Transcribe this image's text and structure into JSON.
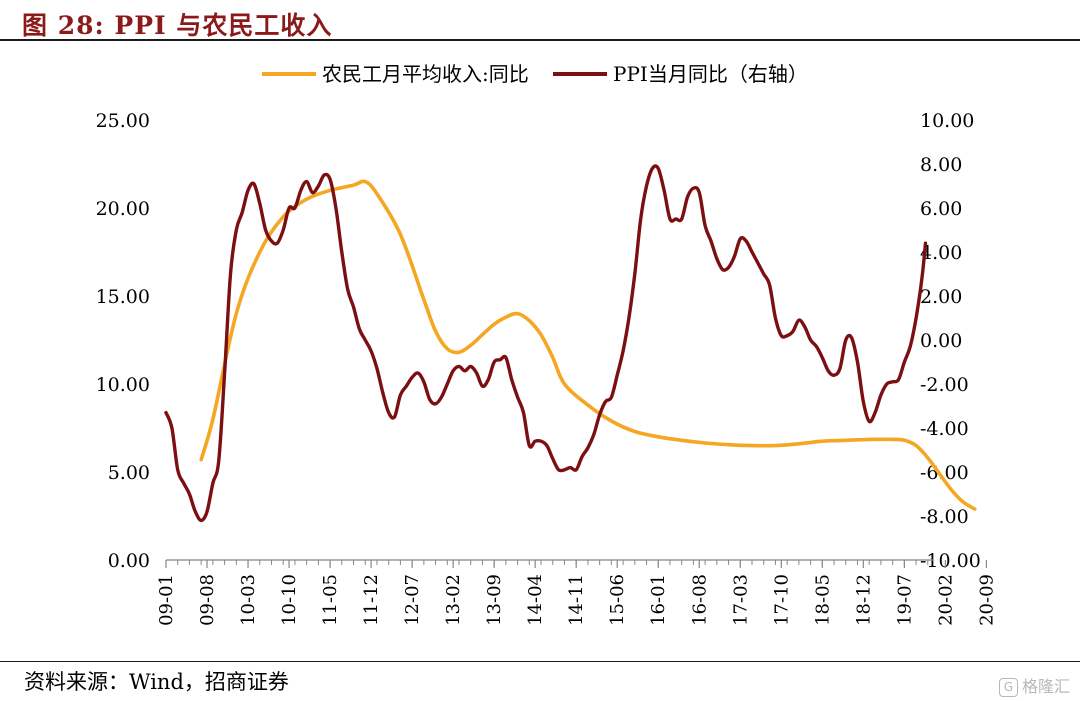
{
  "header": {
    "title": "图 28:  PPI 与农民工收入"
  },
  "footer": {
    "source": "资料来源：Wind，招商证券",
    "watermark": "格隆汇"
  },
  "colors": {
    "income": "#f5a623",
    "ppi": "#7b0f12",
    "title": "#8b1a1a",
    "axis": "#888888"
  },
  "chart_data": {
    "type": "line",
    "title": "",
    "legend_position": "top",
    "x_ticks": [
      "09-01",
      "09-08",
      "10-03",
      "10-10",
      "11-05",
      "11-12",
      "12-07",
      "13-02",
      "13-09",
      "14-04",
      "14-11",
      "15-06",
      "16-01",
      "16-08",
      "17-03",
      "17-10",
      "18-05",
      "18-12",
      "19-07",
      "20-02",
      "20-09"
    ],
    "left_axis": {
      "ylim": [
        0,
        25
      ],
      "ticks": [
        "0.00",
        "5.00",
        "10.00",
        "15.00",
        "20.00",
        "25.00"
      ]
    },
    "right_axis": {
      "ylim": [
        -10,
        10
      ],
      "ticks": [
        "-10.00",
        "-8.00",
        "-6.00",
        "-4.00",
        "-2.00",
        "0.00",
        "2.00",
        "4.00",
        "6.00",
        "8.00",
        "10.00"
      ]
    },
    "series": [
      {
        "name": "农民工月平均收入:同比",
        "axis": "left",
        "points": [
          [
            3,
            5.7
          ],
          [
            4,
            8
          ],
          [
            6,
            14
          ],
          [
            8,
            17.5
          ],
          [
            10,
            19.5
          ],
          [
            12,
            20.5
          ],
          [
            14,
            21
          ],
          [
            16,
            21.3
          ],
          [
            17,
            21.5
          ],
          [
            18,
            20.8
          ],
          [
            20,
            18.5
          ],
          [
            22,
            14.8
          ],
          [
            23,
            13
          ],
          [
            24,
            12
          ],
          [
            25,
            11.8
          ],
          [
            26,
            12.2
          ],
          [
            27,
            12.8
          ],
          [
            28,
            13.4
          ],
          [
            29,
            13.8
          ],
          [
            30,
            14
          ],
          [
            31,
            13.6
          ],
          [
            32,
            12.8
          ],
          [
            33,
            11.5
          ],
          [
            34,
            10
          ],
          [
            36,
            8.8
          ],
          [
            38,
            7.9
          ],
          [
            40,
            7.3
          ],
          [
            42,
            7
          ],
          [
            44,
            6.8
          ],
          [
            46,
            6.65
          ],
          [
            48,
            6.55
          ],
          [
            50,
            6.5
          ],
          [
            52,
            6.5
          ],
          [
            54,
            6.6
          ],
          [
            56,
            6.75
          ],
          [
            58,
            6.8
          ],
          [
            60,
            6.85
          ],
          [
            62,
            6.85
          ],
          [
            63,
            6.8
          ],
          [
            64,
            6.5
          ],
          [
            65,
            5.8
          ],
          [
            66,
            4.9
          ],
          [
            67,
            4
          ],
          [
            68,
            3.3
          ],
          [
            69,
            2.9
          ]
        ]
      },
      {
        "name": "PPI当月同比（右轴）",
        "axis": "right",
        "points": [
          [
            0,
            -3.3
          ],
          [
            0.5,
            -4
          ],
          [
            1,
            -5.9
          ],
          [
            1.5,
            -6.5
          ],
          [
            2,
            -7
          ],
          [
            2.5,
            -7.8
          ],
          [
            3,
            -8.2
          ],
          [
            3.5,
            -7.8
          ],
          [
            4,
            -6.5
          ],
          [
            4.5,
            -5.5
          ],
          [
            5,
            -1.5
          ],
          [
            5.5,
            3
          ],
          [
            6,
            5
          ],
          [
            6.5,
            5.8
          ],
          [
            7,
            6.8
          ],
          [
            7.5,
            7.1
          ],
          [
            8,
            6.2
          ],
          [
            8.5,
            5
          ],
          [
            9,
            4.5
          ],
          [
            9.5,
            4.4
          ],
          [
            10,
            5
          ],
          [
            10.5,
            6
          ],
          [
            11,
            6
          ],
          [
            11.5,
            6.8
          ],
          [
            12,
            7.2
          ],
          [
            12.5,
            6.7
          ],
          [
            13,
            7
          ],
          [
            13.5,
            7.5
          ],
          [
            14,
            7.3
          ],
          [
            14.5,
            6
          ],
          [
            15,
            4
          ],
          [
            15.5,
            2.3
          ],
          [
            16,
            1.5
          ],
          [
            16.5,
            0.5
          ],
          [
            17,
            0
          ],
          [
            17.5,
            -0.5
          ],
          [
            18,
            -1.3
          ],
          [
            18.5,
            -2.4
          ],
          [
            19,
            -3.3
          ],
          [
            19.5,
            -3.5
          ],
          [
            20,
            -2.5
          ],
          [
            20.5,
            -2.1
          ],
          [
            21,
            -1.7
          ],
          [
            21.5,
            -1.5
          ],
          [
            22,
            -1.9
          ],
          [
            22.5,
            -2.7
          ],
          [
            23,
            -2.9
          ],
          [
            23.5,
            -2.6
          ],
          [
            24,
            -2
          ],
          [
            24.5,
            -1.4
          ],
          [
            25,
            -1.2
          ],
          [
            25.5,
            -1.4
          ],
          [
            26,
            -1.2
          ],
          [
            26.5,
            -1.5
          ],
          [
            27,
            -2.1
          ],
          [
            27.5,
            -1.8
          ],
          [
            28,
            -1
          ],
          [
            28.5,
            -0.9
          ],
          [
            29,
            -0.8
          ],
          [
            29.5,
            -1.8
          ],
          [
            30,
            -2.6
          ],
          [
            30.5,
            -3.3
          ],
          [
            31,
            -4.8
          ],
          [
            31.5,
            -4.6
          ],
          [
            32,
            -4.6
          ],
          [
            32.5,
            -4.8
          ],
          [
            33,
            -5.4
          ],
          [
            33.5,
            -5.9
          ],
          [
            34,
            -5.9
          ],
          [
            34.5,
            -5.8
          ],
          [
            35,
            -5.9
          ],
          [
            35.5,
            -5.3
          ],
          [
            36,
            -4.9
          ],
          [
            36.5,
            -4.3
          ],
          [
            37,
            -3.4
          ],
          [
            37.5,
            -2.8
          ],
          [
            38,
            -2.6
          ],
          [
            38.5,
            -1.6
          ],
          [
            39,
            -0.5
          ],
          [
            39.5,
            1
          ],
          [
            40,
            3
          ],
          [
            40.5,
            5.5
          ],
          [
            41,
            7
          ],
          [
            41.5,
            7.8
          ],
          [
            42,
            7.8
          ],
          [
            42.5,
            6.8
          ],
          [
            43,
            5.5
          ],
          [
            43.5,
            5.5
          ],
          [
            44,
            5.5
          ],
          [
            44.5,
            6.5
          ],
          [
            45,
            6.9
          ],
          [
            45.5,
            6.7
          ],
          [
            46,
            5.2
          ],
          [
            46.5,
            4.5
          ],
          [
            47,
            3.7
          ],
          [
            47.5,
            3.2
          ],
          [
            48,
            3.3
          ],
          [
            48.5,
            3.8
          ],
          [
            49,
            4.6
          ],
          [
            49.5,
            4.5
          ],
          [
            50,
            4
          ],
          [
            50.5,
            3.5
          ],
          [
            51,
            3
          ],
          [
            51.5,
            2.5
          ],
          [
            52,
            1
          ],
          [
            52.5,
            0.2
          ],
          [
            53,
            0.2
          ],
          [
            53.5,
            0.4
          ],
          [
            54,
            0.9
          ],
          [
            54.5,
            0.6
          ],
          [
            55,
            0
          ],
          [
            55.5,
            -0.3
          ],
          [
            56,
            -0.8
          ],
          [
            56.5,
            -1.4
          ],
          [
            57,
            -1.6
          ],
          [
            57.5,
            -1.3
          ],
          [
            58,
            0
          ],
          [
            58.5,
            0.1
          ],
          [
            59,
            -1
          ],
          [
            59.5,
            -2.8
          ],
          [
            60,
            -3.7
          ],
          [
            60.5,
            -3.3
          ],
          [
            61,
            -2.5
          ],
          [
            61.5,
            -2
          ],
          [
            62,
            -1.9
          ],
          [
            62.5,
            -1.8
          ],
          [
            63,
            -1
          ],
          [
            63.5,
            -0.3
          ],
          [
            64,
            1
          ],
          [
            64.5,
            2.8
          ],
          [
            64.8,
            4.4
          ]
        ]
      }
    ]
  }
}
